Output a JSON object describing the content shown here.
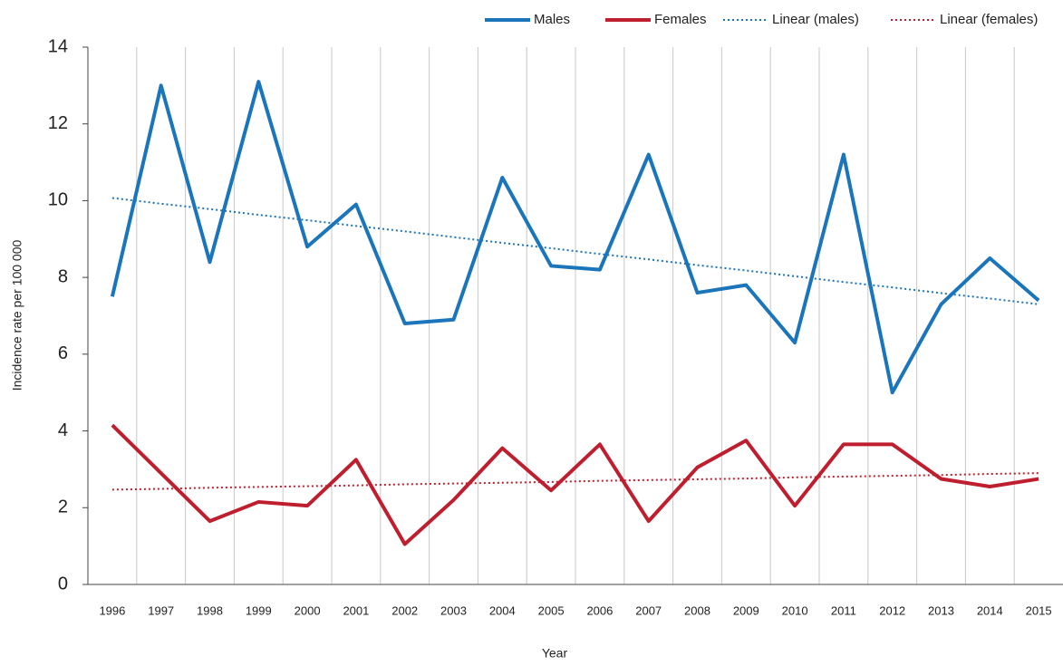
{
  "chart_data": {
    "type": "line",
    "x_label": "Year",
    "y_label": "Incidence rate per 100 000",
    "categories": [
      "1996",
      "1997",
      "1998",
      "1999",
      "2000",
      "2001",
      "2002",
      "2003",
      "2004",
      "2005",
      "2006",
      "2007",
      "2008",
      "2009",
      "2010",
      "2011",
      "2012",
      "2013",
      "2014",
      "2015"
    ],
    "series": [
      {
        "name": "Males",
        "color": "#1b75bb",
        "dashed": false,
        "values": [
          7.5,
          13.0,
          8.4,
          13.1,
          8.8,
          9.9,
          6.8,
          6.9,
          10.6,
          8.3,
          8.2,
          11.2,
          7.6,
          7.8,
          6.3,
          11.2,
          5.0,
          7.3,
          8.5,
          7.4
        ]
      },
      {
        "name": "Females",
        "color": "#be1e2d",
        "dashed": false,
        "values": [
          4.15,
          2.9,
          1.65,
          2.15,
          2.05,
          3.25,
          1.05,
          2.2,
          3.55,
          2.45,
          3.65,
          1.65,
          3.05,
          3.75,
          2.05,
          3.65,
          3.65,
          2.75,
          2.55,
          2.75
        ]
      },
      {
        "name": "Linear (males)",
        "color": "#1b75bb",
        "dashed": true,
        "values": [
          10.07,
          9.92,
          9.78,
          9.63,
          9.49,
          9.34,
          9.2,
          9.05,
          8.9,
          8.76,
          8.61,
          8.47,
          8.32,
          8.18,
          8.03,
          7.88,
          7.74,
          7.59,
          7.45,
          7.3
        ]
      },
      {
        "name": "Linear (females)",
        "color": "#be1e2d",
        "dashed": true,
        "values": [
          2.47,
          2.49,
          2.52,
          2.54,
          2.56,
          2.58,
          2.61,
          2.63,
          2.65,
          2.67,
          2.7,
          2.72,
          2.74,
          2.76,
          2.79,
          2.81,
          2.83,
          2.85,
          2.88,
          2.9
        ]
      }
    ],
    "ylim": [
      0,
      14
    ],
    "yticks": [
      0,
      2,
      4,
      6,
      8,
      10,
      12,
      14
    ],
    "grid": true,
    "legend": "top-right"
  }
}
